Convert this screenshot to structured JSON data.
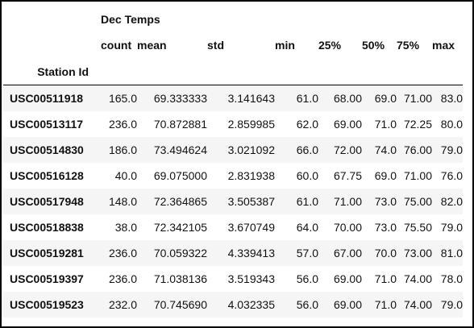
{
  "table": {
    "group_header": "Dec Temps",
    "index_name": "Station Id",
    "columns": [
      "count",
      "mean",
      "std",
      "min",
      "25%",
      "50%",
      "75%",
      "max"
    ],
    "rows": [
      {
        "station": "USC00511918",
        "values": [
          "165.0",
          "69.333333",
          "3.141643",
          "61.0",
          "68.00",
          "69.0",
          "71.00",
          "83.0"
        ]
      },
      {
        "station": "USC00513117",
        "values": [
          "236.0",
          "70.872881",
          "2.859985",
          "62.0",
          "69.00",
          "71.0",
          "72.25",
          "80.0"
        ]
      },
      {
        "station": "USC00514830",
        "values": [
          "186.0",
          "73.494624",
          "3.021092",
          "66.0",
          "72.00",
          "74.0",
          "76.00",
          "79.0"
        ]
      },
      {
        "station": "USC00516128",
        "values": [
          "40.0",
          "69.075000",
          "2.831938",
          "60.0",
          "67.75",
          "69.0",
          "71.00",
          "76.0"
        ]
      },
      {
        "station": "USC00517948",
        "values": [
          "148.0",
          "72.364865",
          "3.505387",
          "61.0",
          "71.00",
          "73.0",
          "75.00",
          "82.0"
        ]
      },
      {
        "station": "USC00518838",
        "values": [
          "38.0",
          "72.342105",
          "3.670749",
          "64.0",
          "70.00",
          "73.0",
          "75.50",
          "79.0"
        ]
      },
      {
        "station": "USC00519281",
        "values": [
          "236.0",
          "70.059322",
          "4.339413",
          "57.0",
          "67.00",
          "70.0",
          "73.00",
          "81.0"
        ]
      },
      {
        "station": "USC00519397",
        "values": [
          "236.0",
          "71.038136",
          "3.519343",
          "56.0",
          "69.00",
          "71.0",
          "74.00",
          "78.0"
        ]
      },
      {
        "station": "USC00519523",
        "values": [
          "232.0",
          "70.745690",
          "4.032335",
          "56.0",
          "69.00",
          "71.0",
          "74.00",
          "79.0"
        ]
      }
    ]
  }
}
